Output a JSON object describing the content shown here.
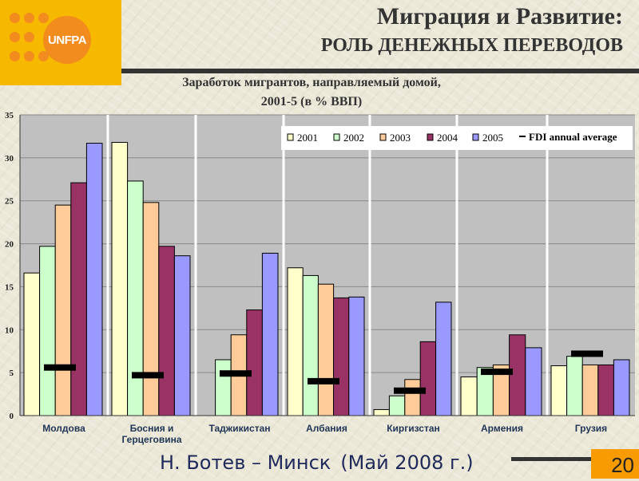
{
  "logo": {
    "text": "UNFPA"
  },
  "header": {
    "title": "Миграция и Развитие:",
    "subtitle": "РОЛЬ ДЕНЕЖНЫХ ПЕРЕВОДОВ"
  },
  "chart_data": {
    "type": "bar",
    "title_line1": "Заработок мигрантов, направляемый домой,",
    "title_line2": "2001-5 (в % ВВП)",
    "categories": [
      "Молдова",
      "Босния и Герцеговина",
      "Таджикистан",
      "Албания",
      "Киргизстан",
      "Армения",
      "Грузия"
    ],
    "series": [
      {
        "name": "2001",
        "color": "#ffffcc",
        "values": [
          16.6,
          31.8,
          0,
          17.2,
          0.7,
          4.5,
          5.8
        ]
      },
      {
        "name": "2002",
        "color": "#ccffcc",
        "values": [
          19.7,
          27.3,
          6.5,
          16.3,
          2.3,
          5.6,
          6.9
        ]
      },
      {
        "name": "2003",
        "color": "#ffcc99",
        "values": [
          24.5,
          24.8,
          9.4,
          15.3,
          4.2,
          5.9,
          5.9
        ]
      },
      {
        "name": "2004",
        "color": "#993366",
        "values": [
          27.1,
          19.7,
          12.3,
          13.7,
          8.6,
          9.4,
          5.9
        ]
      },
      {
        "name": "2005",
        "color": "#9999ff",
        "values": [
          31.7,
          18.6,
          18.9,
          13.8,
          13.2,
          7.9,
          6.5
        ]
      }
    ],
    "fdi": {
      "name": "FDI annual average",
      "values": [
        5.6,
        4.7,
        4.9,
        4.0,
        2.9,
        5.1,
        7.2
      ]
    },
    "yticks": [
      "0",
      "5",
      "10",
      "15",
      "20",
      "25",
      "30",
      "35"
    ],
    "ylim": [
      0,
      35
    ],
    "grid": true,
    "legend": "top-right"
  },
  "footer": {
    "author": "Н. Ботев – Минск",
    "date": "(Май 2008 г.)",
    "page": "20"
  }
}
